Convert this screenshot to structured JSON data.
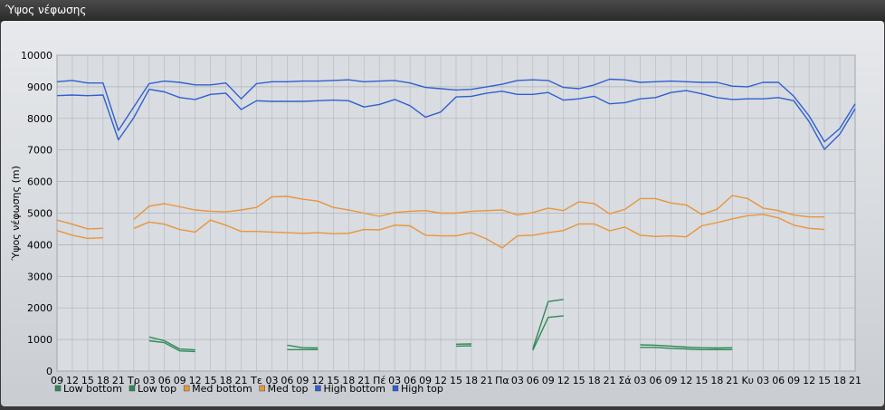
{
  "window": {
    "title": "Ύψος νέφωσης"
  },
  "chart_data": {
    "type": "line",
    "ylabel": "Ύψος νέφωσης (m)",
    "ylim": [
      0,
      10000
    ],
    "yticks": [
      0,
      1000,
      2000,
      3000,
      4000,
      5000,
      6000,
      7000,
      8000,
      9000,
      10000
    ],
    "grid": true,
    "legend_position": "bottom-left",
    "categories": [
      "09",
      "12",
      "15",
      "18",
      "21",
      "Τρ",
      "03",
      "06",
      "09",
      "12",
      "15",
      "18",
      "21",
      "Τε",
      "03",
      "06",
      "09",
      "12",
      "15",
      "18",
      "21",
      "Πέ",
      "03",
      "06",
      "09",
      "12",
      "15",
      "18",
      "21",
      "Πα",
      "03",
      "06",
      "09",
      "12",
      "15",
      "18",
      "21",
      "Σά",
      "03",
      "06",
      "09",
      "12",
      "15",
      "18",
      "21",
      "Κυ",
      "03",
      "06",
      "09",
      "12",
      "15",
      "18",
      "21"
    ],
    "x_min": 0,
    "x_max": 52,
    "series": [
      {
        "name": "Low bottom",
        "color": "#2e8b57",
        "points": [
          [
            6,
            960
          ],
          [
            7,
            900
          ],
          [
            8,
            640
          ],
          [
            9,
            620
          ],
          [
            15,
            680
          ],
          [
            16,
            680
          ],
          [
            17,
            680
          ],
          [
            26,
            790
          ],
          [
            27,
            800
          ],
          [
            31,
            660
          ],
          [
            32,
            1700
          ],
          [
            33,
            1750
          ],
          [
            38,
            750
          ],
          [
            39,
            750
          ],
          [
            40,
            720
          ],
          [
            41,
            700
          ],
          [
            42,
            680
          ],
          [
            43,
            680
          ],
          [
            44,
            680
          ]
        ]
      },
      {
        "name": "Low top",
        "color": "#2e8b57",
        "points": [
          [
            6,
            1080
          ],
          [
            7,
            960
          ],
          [
            8,
            700
          ],
          [
            9,
            670
          ],
          [
            15,
            820
          ],
          [
            16,
            740
          ],
          [
            17,
            730
          ],
          [
            26,
            850
          ],
          [
            27,
            860
          ],
          [
            31,
            700
          ],
          [
            32,
            2200
          ],
          [
            33,
            2270
          ],
          [
            38,
            830
          ],
          [
            39,
            820
          ],
          [
            40,
            790
          ],
          [
            41,
            760
          ],
          [
            42,
            740
          ],
          [
            43,
            730
          ],
          [
            44,
            740
          ]
        ]
      },
      {
        "name": "Med bottom",
        "color": "#e8963c",
        "points": [
          [
            0,
            4450
          ],
          [
            1,
            4300
          ],
          [
            2,
            4200
          ],
          [
            3,
            4220
          ],
          [
            5,
            4520
          ],
          [
            6,
            4720
          ],
          [
            7,
            4650
          ],
          [
            8,
            4480
          ],
          [
            9,
            4400
          ],
          [
            10,
            4780
          ],
          [
            11,
            4620
          ],
          [
            12,
            4420
          ],
          [
            13,
            4420
          ],
          [
            14,
            4400
          ],
          [
            15,
            4380
          ],
          [
            16,
            4360
          ],
          [
            17,
            4380
          ],
          [
            18,
            4350
          ],
          [
            19,
            4360
          ],
          [
            20,
            4480
          ],
          [
            21,
            4470
          ],
          [
            22,
            4620
          ],
          [
            23,
            4600
          ],
          [
            24,
            4300
          ],
          [
            25,
            4280
          ],
          [
            26,
            4280
          ],
          [
            27,
            4380
          ],
          [
            28,
            4180
          ],
          [
            29,
            3900
          ],
          [
            30,
            4280
          ],
          [
            31,
            4300
          ],
          [
            32,
            4380
          ],
          [
            33,
            4450
          ],
          [
            34,
            4660
          ],
          [
            35,
            4660
          ],
          [
            36,
            4440
          ],
          [
            37,
            4560
          ],
          [
            38,
            4300
          ],
          [
            39,
            4260
          ],
          [
            40,
            4280
          ],
          [
            41,
            4250
          ],
          [
            42,
            4600
          ],
          [
            43,
            4700
          ],
          [
            44,
            4820
          ],
          [
            45,
            4920
          ],
          [
            46,
            4960
          ],
          [
            47,
            4850
          ],
          [
            48,
            4620
          ],
          [
            49,
            4520
          ],
          [
            50,
            4480
          ]
        ]
      },
      {
        "name": "Med top",
        "color": "#e8963c",
        "points": [
          [
            0,
            4780
          ],
          [
            1,
            4650
          ],
          [
            2,
            4500
          ],
          [
            3,
            4520
          ],
          [
            5,
            4800
          ],
          [
            6,
            5220
          ],
          [
            7,
            5300
          ],
          [
            8,
            5200
          ],
          [
            9,
            5100
          ],
          [
            10,
            5060
          ],
          [
            11,
            5040
          ],
          [
            12,
            5100
          ],
          [
            13,
            5180
          ],
          [
            14,
            5520
          ],
          [
            15,
            5530
          ],
          [
            16,
            5440
          ],
          [
            17,
            5380
          ],
          [
            18,
            5180
          ],
          [
            19,
            5100
          ],
          [
            20,
            5000
          ],
          [
            21,
            4900
          ],
          [
            22,
            5020
          ],
          [
            23,
            5060
          ],
          [
            24,
            5080
          ],
          [
            25,
            5000
          ],
          [
            26,
            5000
          ],
          [
            27,
            5060
          ],
          [
            28,
            5080
          ],
          [
            29,
            5100
          ],
          [
            30,
            4940
          ],
          [
            31,
            5020
          ],
          [
            32,
            5160
          ],
          [
            33,
            5080
          ],
          [
            34,
            5360
          ],
          [
            35,
            5300
          ],
          [
            36,
            4980
          ],
          [
            37,
            5120
          ],
          [
            38,
            5460
          ],
          [
            39,
            5460
          ],
          [
            40,
            5320
          ],
          [
            41,
            5260
          ],
          [
            42,
            4960
          ],
          [
            43,
            5120
          ],
          [
            44,
            5560
          ],
          [
            45,
            5460
          ],
          [
            46,
            5160
          ],
          [
            47,
            5080
          ],
          [
            48,
            4940
          ],
          [
            49,
            4880
          ],
          [
            50,
            4880
          ]
        ]
      },
      {
        "name": "High bottom",
        "color": "#3060d0",
        "points": [
          [
            0,
            8720
          ],
          [
            1,
            8740
          ],
          [
            2,
            8720
          ],
          [
            3,
            8740
          ],
          [
            4,
            7320
          ],
          [
            5,
            8020
          ],
          [
            6,
            8920
          ],
          [
            7,
            8840
          ],
          [
            8,
            8660
          ],
          [
            9,
            8600
          ],
          [
            10,
            8760
          ],
          [
            11,
            8800
          ],
          [
            12,
            8280
          ],
          [
            13,
            8560
          ],
          [
            14,
            8540
          ],
          [
            15,
            8540
          ],
          [
            16,
            8540
          ],
          [
            17,
            8560
          ],
          [
            18,
            8580
          ],
          [
            19,
            8560
          ],
          [
            20,
            8360
          ],
          [
            21,
            8440
          ],
          [
            22,
            8600
          ],
          [
            23,
            8400
          ],
          [
            24,
            8040
          ],
          [
            25,
            8200
          ],
          [
            26,
            8680
          ],
          [
            27,
            8700
          ],
          [
            28,
            8800
          ],
          [
            29,
            8860
          ],
          [
            30,
            8760
          ],
          [
            31,
            8760
          ],
          [
            32,
            8820
          ],
          [
            33,
            8580
          ],
          [
            34,
            8620
          ],
          [
            35,
            8700
          ],
          [
            36,
            8460
          ],
          [
            37,
            8500
          ],
          [
            38,
            8620
          ],
          [
            39,
            8660
          ],
          [
            40,
            8820
          ],
          [
            41,
            8880
          ],
          [
            42,
            8780
          ],
          [
            43,
            8660
          ],
          [
            44,
            8600
          ],
          [
            45,
            8620
          ],
          [
            46,
            8620
          ],
          [
            47,
            8660
          ],
          [
            48,
            8560
          ],
          [
            49,
            7900
          ],
          [
            50,
            7020
          ],
          [
            51,
            7500
          ],
          [
            52,
            8300
          ]
        ]
      },
      {
        "name": "High top",
        "color": "#3060d0",
        "points": [
          [
            0,
            9160
          ],
          [
            1,
            9200
          ],
          [
            2,
            9120
          ],
          [
            3,
            9120
          ],
          [
            4,
            7620
          ],
          [
            5,
            8360
          ],
          [
            6,
            9100
          ],
          [
            7,
            9180
          ],
          [
            8,
            9140
          ],
          [
            9,
            9060
          ],
          [
            10,
            9060
          ],
          [
            11,
            9120
          ],
          [
            12,
            8620
          ],
          [
            13,
            9100
          ],
          [
            14,
            9160
          ],
          [
            15,
            9160
          ],
          [
            16,
            9180
          ],
          [
            17,
            9180
          ],
          [
            18,
            9200
          ],
          [
            19,
            9220
          ],
          [
            20,
            9160
          ],
          [
            21,
            9180
          ],
          [
            22,
            9200
          ],
          [
            23,
            9120
          ],
          [
            24,
            8980
          ],
          [
            25,
            8940
          ],
          [
            26,
            8900
          ],
          [
            27,
            8920
          ],
          [
            28,
            9000
          ],
          [
            29,
            9080
          ],
          [
            30,
            9200
          ],
          [
            31,
            9220
          ],
          [
            32,
            9200
          ],
          [
            33,
            8980
          ],
          [
            34,
            8940
          ],
          [
            35,
            9060
          ],
          [
            36,
            9240
          ],
          [
            37,
            9220
          ],
          [
            38,
            9140
          ],
          [
            39,
            9160
          ],
          [
            40,
            9180
          ],
          [
            41,
            9160
          ],
          [
            42,
            9140
          ],
          [
            43,
            9140
          ],
          [
            44,
            9020
          ],
          [
            45,
            9000
          ],
          [
            46,
            9140
          ],
          [
            47,
            9140
          ],
          [
            48,
            8700
          ],
          [
            49,
            8080
          ],
          [
            50,
            7260
          ],
          [
            51,
            7680
          ],
          [
            52,
            8460
          ]
        ]
      }
    ]
  }
}
